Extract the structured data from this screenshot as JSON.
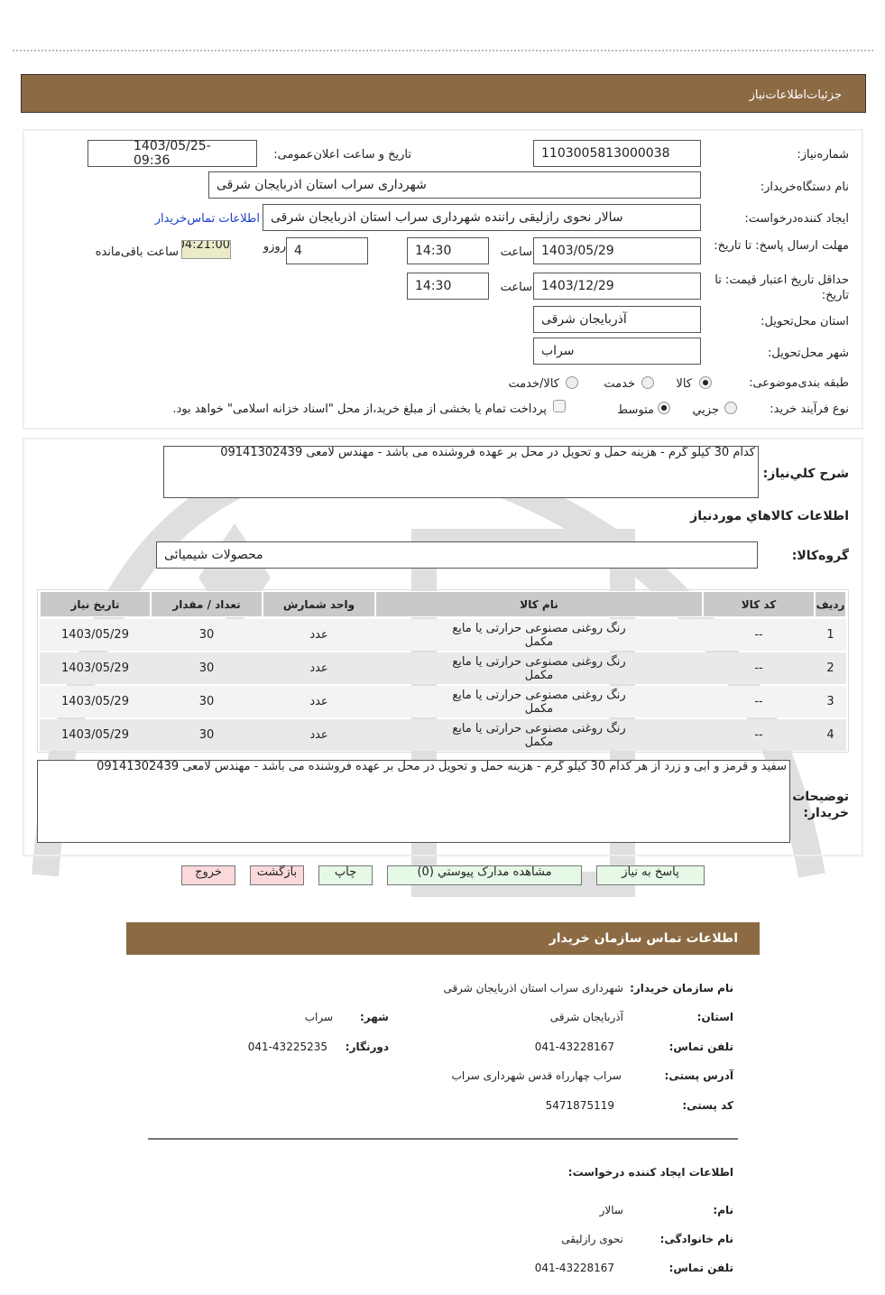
{
  "header": {
    "title": "جزئیات‌اطلاعات‌نیاز"
  },
  "form": {
    "need_number_label": "شماره‌نیاز:",
    "need_number": "1103005813000038",
    "announce_label": "تاریخ و ساعت اعلان‌عمومی:",
    "announce_value": "1403/05/25- 09:36",
    "buyer_org_label": "نام دستگاه‌خریدار:",
    "buyer_org": "شهرداری سراب استان اذربایجان شرقی",
    "creator_label": "ایجاد کننده‌درخواست:",
    "creator": "سالار نحوی رازلیقی راننده شهرداری سراب استان اذربایجان شرقی",
    "contact_link": "اطلاعات تماس‌خریدار",
    "deadline_label": "مهلت ارسال پاسخ: تا تاریخ:",
    "deadline_date": "1403/05/29",
    "time_label": "ساعت",
    "deadline_time": "14:30",
    "days_label": "روزو",
    "days": "4",
    "remaining_time": "04:21:00",
    "remaining_label": "ساعت باقی‌مانده",
    "validity_label": "حداقل تاریخ اعتبار قیمت: تا تاریخ:",
    "validity_date": "1403/12/29",
    "validity_time": "14:30",
    "province_label": "استان محل‌تحویل:",
    "province": "آذربایجان شرقی",
    "city_label": "شهر محل‌تحویل:",
    "city": "سراب",
    "category_label": "طبقه بندی‌موضوعی:",
    "category_options": [
      "کالا",
      "خدمت",
      "کالا/خدمت"
    ],
    "category_selected": "کالا",
    "process_label": "نوع فرآیند خرید:",
    "process_options": [
      "جزيي",
      "متوسط"
    ],
    "process_selected": "متوسط",
    "treasury_note": "پرداخت تمام یا بخشی از مبلغ خرید،از محل \"اسناد خزانه اسلامی\" خواهد بود."
  },
  "need": {
    "summary_label": "شرح کلي‌نیاز:",
    "summary": "کدام 30 کیلو گرم - هزینه حمل و تحویل در محل بر عهده فروشنده می باشد - مهندس لامعی 09141302439",
    "goods_title": "اطلاعات کالاهاي موردنیاز",
    "group_label": "گروه‌کالا:",
    "group": "محصولات شیمیائی",
    "columns": [
      "ردیف",
      "کد کالا",
      "نام کالا",
      "واحد شمارش",
      "تعداد / مقدار",
      "تاریخ نیاز"
    ],
    "rows": [
      {
        "idx": "1",
        "code": "--",
        "name": "رنگ روغنی مصنوعی حرارتی یا مایع مکمل",
        "unit": "عدد",
        "qty": "30",
        "date": "1403/05/29"
      },
      {
        "idx": "2",
        "code": "--",
        "name": "رنگ روغنی مصنوعی حرارتی یا مایع مکمل",
        "unit": "عدد",
        "qty": "30",
        "date": "1403/05/29"
      },
      {
        "idx": "3",
        "code": "--",
        "name": "رنگ روغنی مصنوعی حرارتی یا مایع مکمل",
        "unit": "عدد",
        "qty": "30",
        "date": "1403/05/29"
      },
      {
        "idx": "4",
        "code": "--",
        "name": "رنگ روغنی مصنوعی حرارتی یا مایع مکمل",
        "unit": "عدد",
        "qty": "30",
        "date": "1403/05/29"
      }
    ],
    "buyer_notes_label": "توضیحات خریدار:",
    "buyer_notes": "سفید و قرمز و ابی و زرد از هر کدام 30 کیلو گرم - هزینه حمل و تحویل در محل بر عهده فروشنده می باشد - مهندس لامعی 09141302439"
  },
  "buttons": {
    "reply": "پاسخ به نیاز",
    "attachments": "مشاهده مدارک پیوستي (0)",
    "print": "چاپ",
    "back": "بازگشت",
    "exit": "خروج"
  },
  "contact": {
    "title": "اطلاعات تماس سازمان خریدار",
    "org_label": "نام سازمان خریدار:",
    "org": "شهرداری سراب استان اذربایجان شرقی",
    "province_label": "استان:",
    "province": "آذربایجان شرقی",
    "city_label": "شهر:",
    "city": "سراب",
    "phone_label": "تلفن تماس:",
    "phone": "041-43228167",
    "fax_label": "دورنگار:",
    "fax": "041-43225235",
    "address_label": "آدرس پستی:",
    "address": "سراب چهارراه قدس شهرداری سراب",
    "postal_label": "کد پستی:",
    "postal": "5471875119",
    "creator_title": "اطلاعات ایجاد کننده درخواست:",
    "name_label": "نام:",
    "name": "سالار",
    "family_label": "نام خانوادگی:",
    "family": "نحوی رازلیقی",
    "creator_phone_label": "تلفن تماس:",
    "creator_phone": "041-43228167"
  },
  "colors": {
    "header": "#8c6a44",
    "link": "#1a3fc9",
    "green_button": "#e6f8e6",
    "pink_button": "#fbd9db"
  }
}
